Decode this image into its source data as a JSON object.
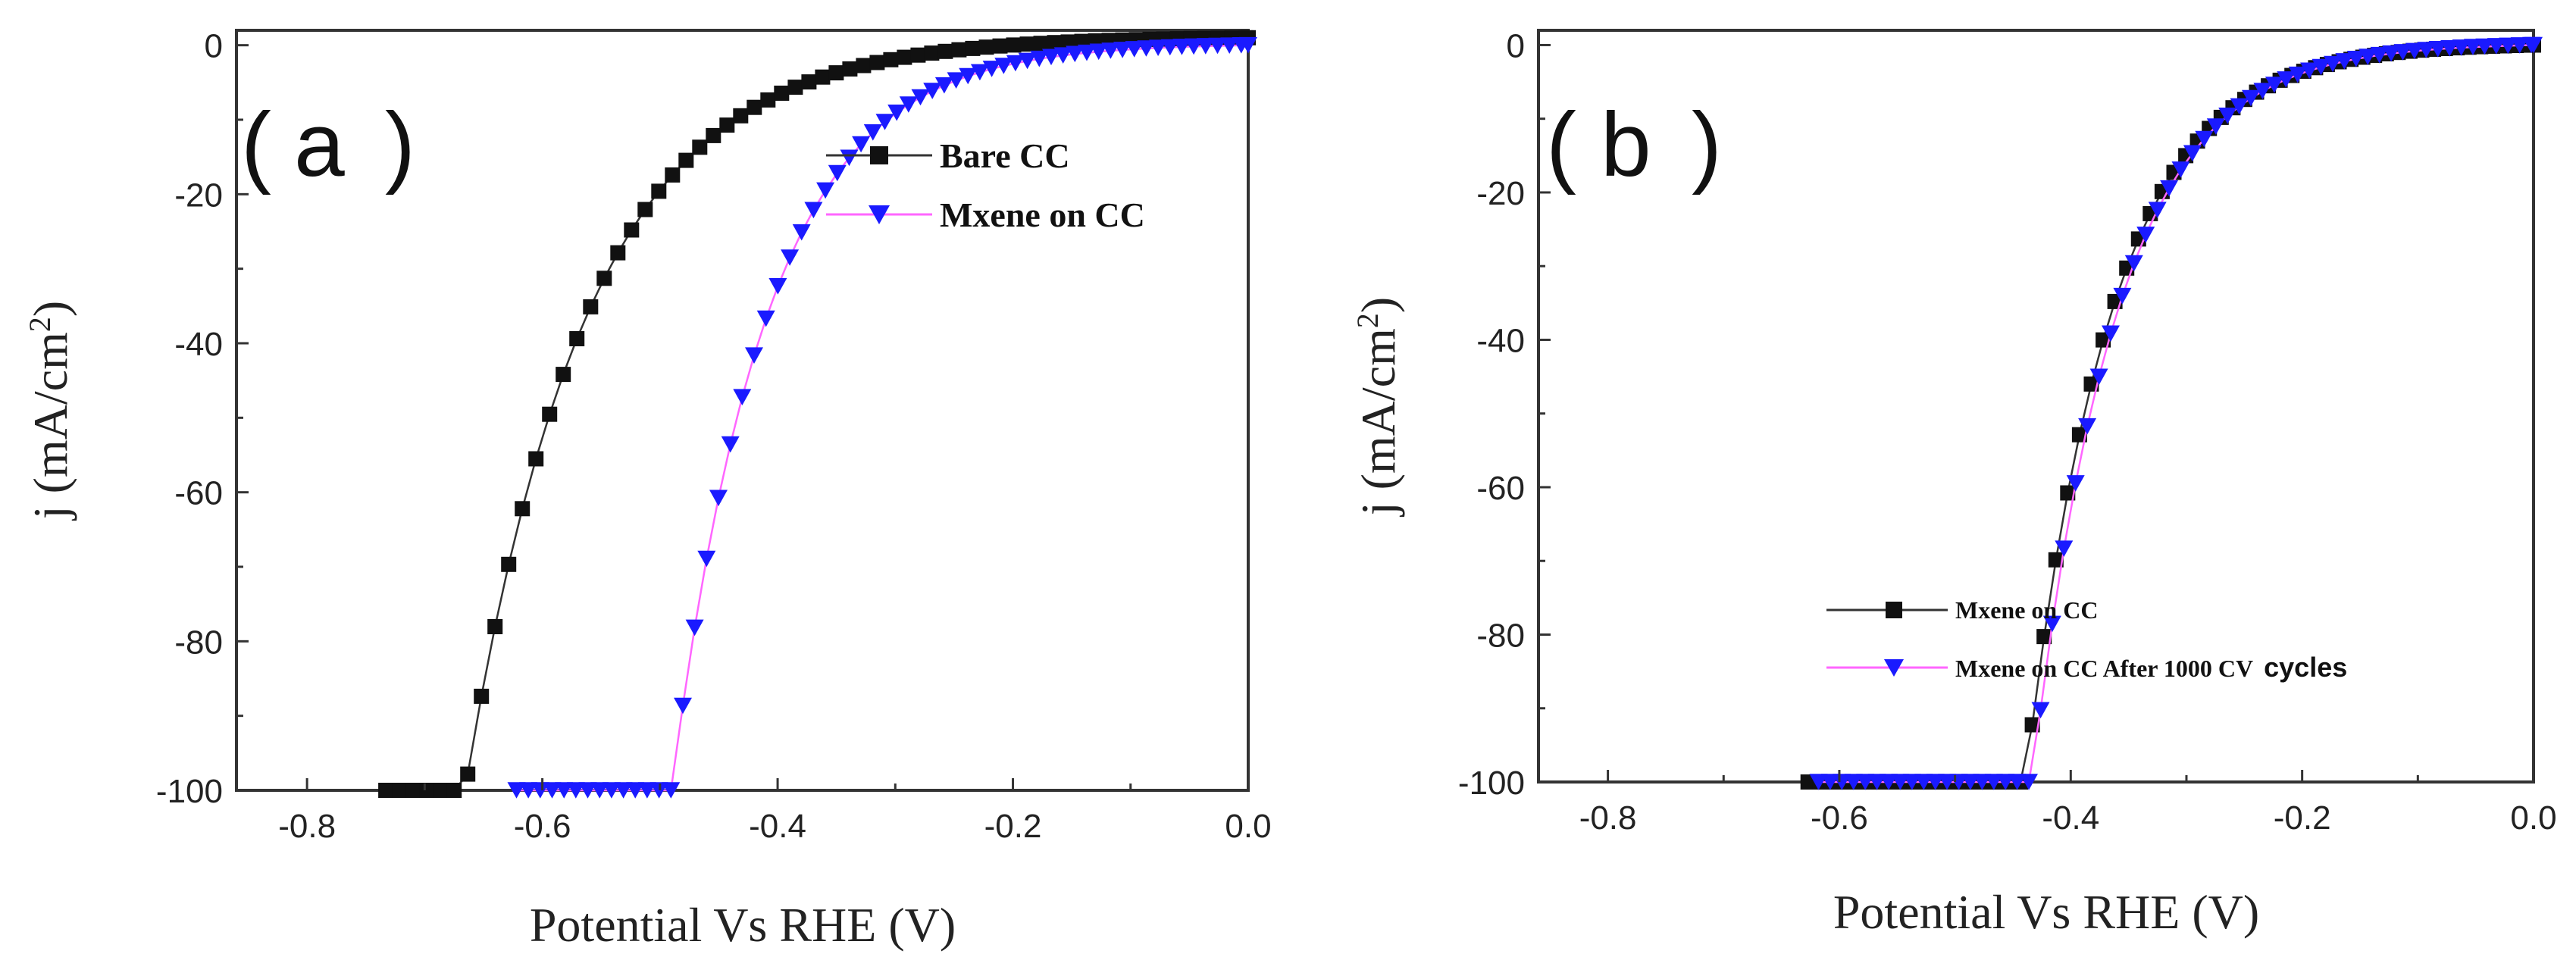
{
  "chart_data": [
    {
      "type": "line",
      "panel_label": "a",
      "xlabel": "Potential Vs RHE (V)",
      "ylabel": "j (mA/cm2)",
      "ylabel_main": "j (mA/cm",
      "ylabel_sup": "2",
      "ylabel_end": ")",
      "xlim": [
        -0.86,
        0.0
      ],
      "ylim": [
        -100,
        2
      ],
      "xticks": [
        -0.8,
        -0.6,
        -0.4,
        -0.2,
        0.0
      ],
      "xtick_labels": [
        "-0.8",
        "-0.6",
        "-0.4",
        "-0.2",
        "0.0"
      ],
      "yticks": [
        0,
        -20,
        -40,
        -60,
        -80,
        -100
      ],
      "ytick_labels": [
        "0",
        "-20",
        "-40",
        "-60",
        "-80",
        "-100"
      ],
      "legend_position": "top-right",
      "series": [
        {
          "name": "Bare CC",
          "legend_label": "Bare CC",
          "marker": "square",
          "marker_color": "#111111",
          "line_color": "#333333",
          "curve": {
            "onset": 0.0,
            "v0": 0.168,
            "k": 0.104,
            "offset": 1.0
          },
          "x_start": -0.733,
          "step": 0.0116
        },
        {
          "name": "Mxene on CC",
          "legend_label": "Mxene on CC",
          "marker": "triangle-down",
          "marker_color": "#1a1aff",
          "line_color": "#ff66ff",
          "curve": {
            "onset": 0.0,
            "v0": 0.227,
            "k": 0.0805,
            "offset": 0.0
          },
          "x_start": -0.622,
          "step": 0.0101
        }
      ]
    },
    {
      "type": "line",
      "panel_label": "b",
      "xlabel": "Potential Vs RHE (V)",
      "ylabel": "j (mA/cm2)",
      "ylabel_main": "j (mA/cm",
      "ylabel_sup": "2",
      "ylabel_end": ")",
      "xlim": [
        -0.86,
        0.0
      ],
      "ylim": [
        -100,
        2
      ],
      "xticks": [
        -0.8,
        -0.6,
        -0.4,
        -0.2,
        0.0
      ],
      "xtick_labels": [
        "-0.8",
        "-0.6",
        "-0.4",
        "-0.2",
        "0.0"
      ],
      "yticks": [
        0,
        -20,
        -40,
        -60,
        -80,
        -100
      ],
      "ytick_labels": [
        "0",
        "-20",
        "-40",
        "-60",
        "-80",
        "-100"
      ],
      "legend_position": "bottom-right",
      "series": [
        {
          "name": "Mxene on CC",
          "legend_label": "Mxene on CC",
          "marker": "square",
          "marker_color": "#111111",
          "line_color": "#333333",
          "curve": {
            "onset": 0.0,
            "v0": 0.257,
            "k": 0.0736,
            "offset": 0.0
          },
          "x_start": -0.627,
          "step": 0.0102
        },
        {
          "name": "Mxene on CC After 1000 CV cycles",
          "legend_label": "Mxene on CC After 1000 CV",
          "legend_tail": "cycles",
          "marker": "triangle-down",
          "marker_color": "#1a1aff",
          "line_color": "#ff66ff",
          "curve": {
            "onset": 0.0,
            "v0": 0.262,
            "k": 0.0729,
            "offset": 0.0
          },
          "x_start": -0.618,
          "step": 0.0101
        }
      ]
    }
  ]
}
